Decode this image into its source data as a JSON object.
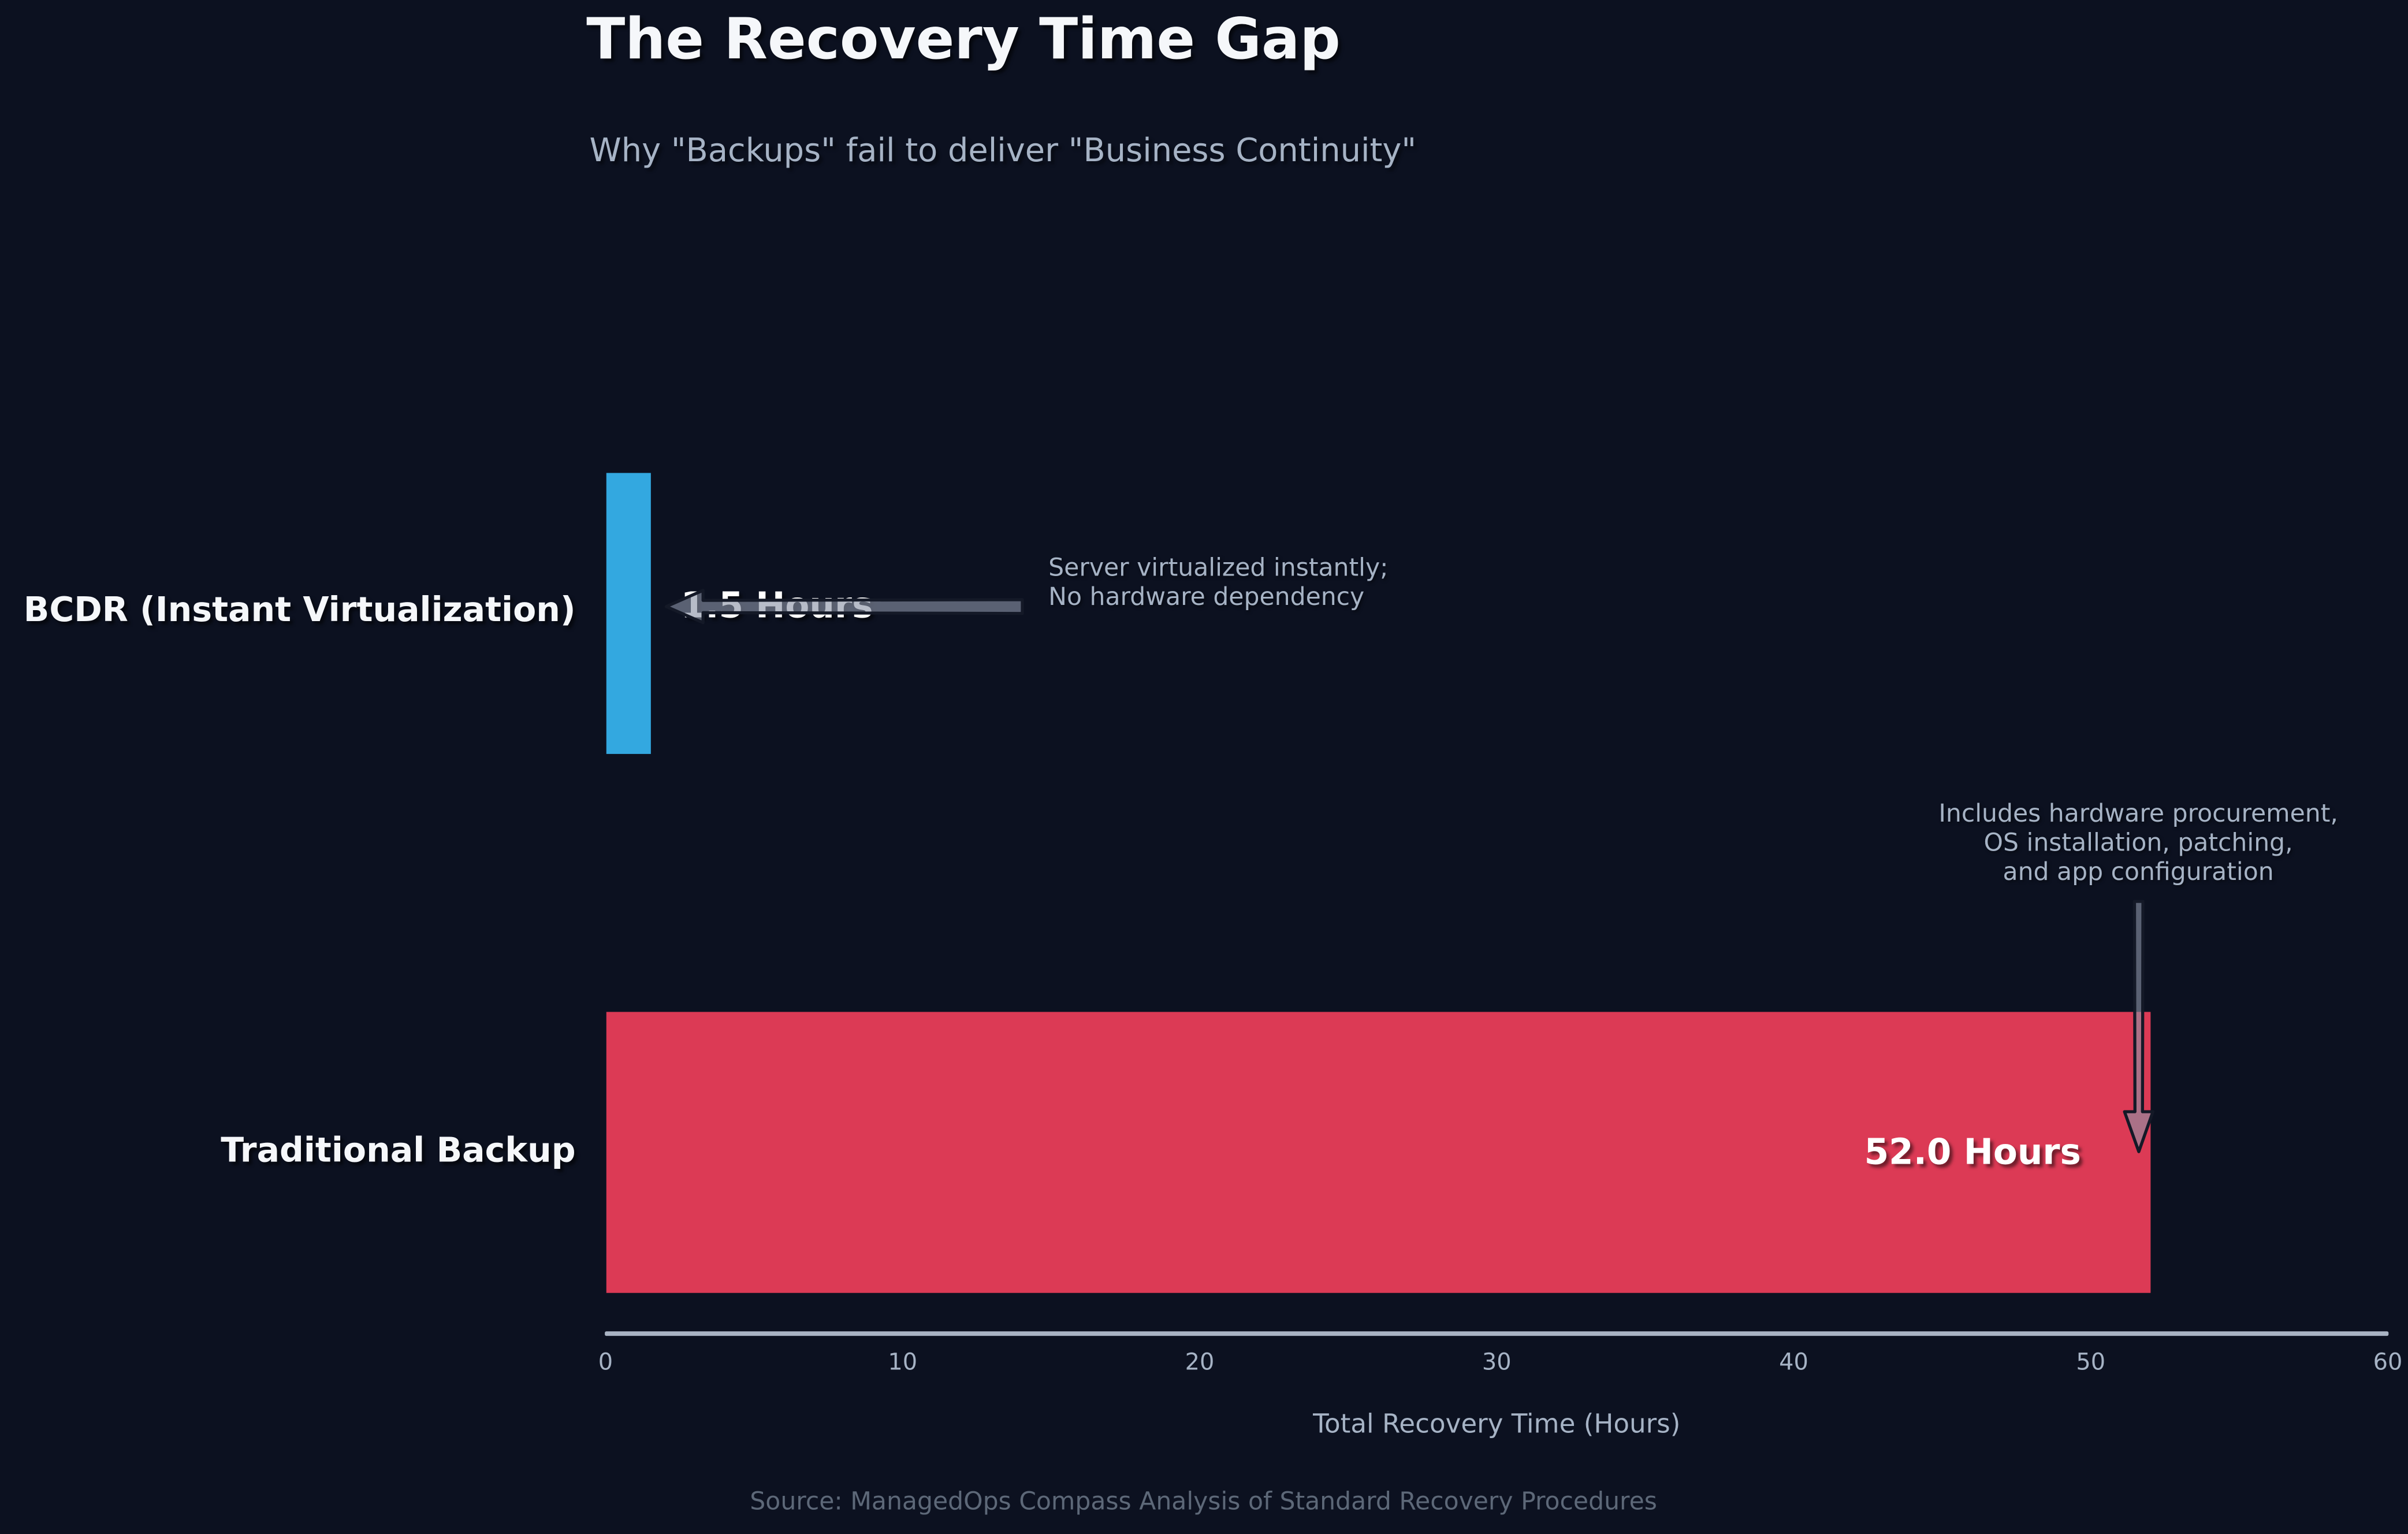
{
  "chart_data": {
    "type": "bar",
    "orientation": "horizontal",
    "title": "The Recovery Time Gap",
    "subtitle": "Why \"Backups\" fail to deliver \"Business Continuity\"",
    "categories": [
      "BCDR (Instant Virtualization)",
      "Traditional Backup"
    ],
    "values": [
      1.5,
      52.0
    ],
    "value_labels": [
      "1.5 Hours",
      "52.0 Hours"
    ],
    "bar_colors": [
      "#33a8e0",
      "#dc3a55"
    ],
    "xlabel": "Total Recovery Time (Hours)",
    "xlim": [
      0,
      60
    ],
    "xticks": [
      0,
      10,
      20,
      30,
      40,
      50,
      60
    ],
    "annotations": [
      {
        "lines": [
          "Server virtualized instantly;",
          "No hardware dependency"
        ]
      },
      {
        "lines": [
          "Includes hardware procurement,",
          "OS installation, patching,",
          "and app configuration"
        ]
      }
    ],
    "source": "Source: ManagedOps Compass Analysis of Standard Recovery Procedures",
    "colors": {
      "background": "#0c1120",
      "title_text": "#f5f7fa",
      "muted_text": "#a6b3c5",
      "source_text": "#5d6878",
      "axis_line": "#a9b3c3",
      "arrow_fill": "#8a93a6"
    }
  }
}
